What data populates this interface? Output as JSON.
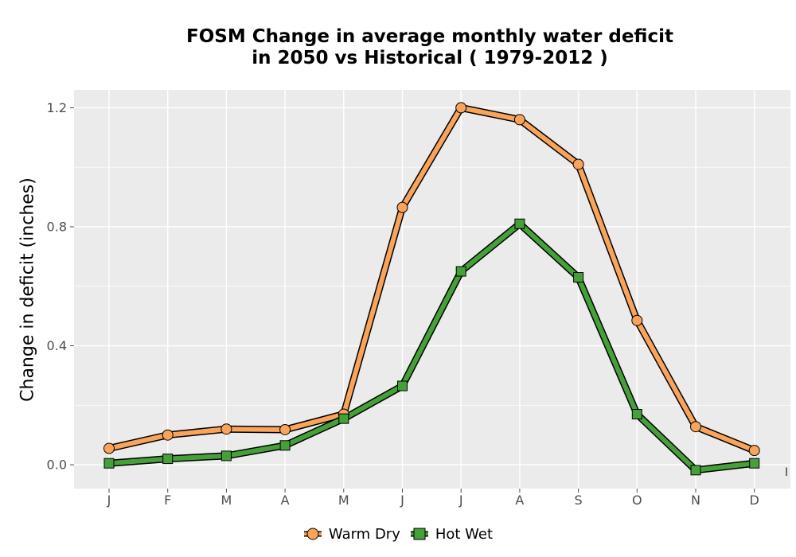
{
  "chart_data": {
    "type": "line",
    "title_line1": "FOSM  Change in average monthly water deficit",
    "title_line2": "in 2050 vs Historical ( 1979-2012 )",
    "xlabel": "",
    "ylabel": "Change in deficit (inches)",
    "categories": [
      "J",
      "F",
      "M",
      "A",
      "M",
      "J",
      "J",
      "A",
      "S",
      "O",
      "N",
      "D"
    ],
    "ylim": [
      -0.08,
      1.26
    ],
    "yticks": [
      0.0,
      0.4,
      0.8,
      1.2
    ],
    "ytick_labels": [
      "0.0",
      "0.4",
      "0.8",
      "1.2"
    ],
    "grid": true,
    "legend_position": "bottom",
    "series": [
      {
        "name": "Warm Dry",
        "color": "#F9A45A",
        "marker": "circle",
        "values": [
          0.055,
          0.1,
          0.12,
          0.118,
          0.17,
          0.865,
          1.2,
          1.16,
          1.01,
          0.485,
          0.128,
          0.048
        ]
      },
      {
        "name": "Hot Wet",
        "color": "#45A03A",
        "marker": "square",
        "values": [
          0.005,
          0.02,
          0.03,
          0.065,
          0.155,
          0.265,
          0.65,
          0.81,
          0.63,
          0.17,
          -0.018,
          0.005
        ]
      }
    ],
    "stray_mark": "I"
  }
}
